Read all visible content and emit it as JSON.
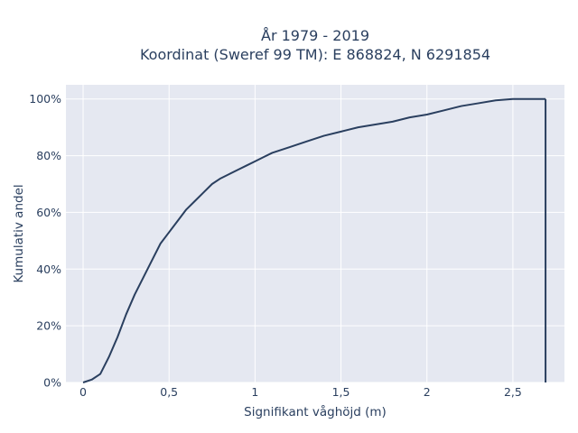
{
  "chart_data": {
    "type": "line",
    "title_line1": "År 1979 - 2019",
    "title_line2": "Koordinat (Sweref 99 TM): E 868824, N 6291854",
    "xlabel": "Signifikant våghöjd (m)",
    "ylabel": "Kumulativ andel",
    "xlim": [
      -0.1,
      2.8
    ],
    "ylim": [
      0,
      1.05
    ],
    "x_ticks": [
      0,
      0.5,
      1,
      1.5,
      2,
      2.5
    ],
    "x_tick_labels": [
      "0",
      "0,5",
      "1",
      "1,5",
      "2",
      "2,5"
    ],
    "y_ticks": [
      0,
      0.2,
      0.4,
      0.6,
      0.8,
      1.0
    ],
    "y_tick_labels": [
      "0%",
      "20%",
      "40%",
      "60%",
      "80%",
      "100%"
    ],
    "grid": true,
    "colors": {
      "line": "#2a3f5f",
      "plot_bg": "#e5e8f1",
      "grid": "#ffffff",
      "text": "#2a3f5f"
    },
    "series": [
      {
        "x": [
          0.0,
          0.05,
          0.1,
          0.15,
          0.2,
          0.25,
          0.3,
          0.35,
          0.4,
          0.45,
          0.5,
          0.55,
          0.6,
          0.65,
          0.7,
          0.75,
          0.8,
          0.85,
          0.9,
          0.95,
          1.0,
          1.05,
          1.1,
          1.15,
          1.2,
          1.3,
          1.4,
          1.5,
          1.6,
          1.7,
          1.8,
          1.9,
          2.0,
          2.1,
          2.2,
          2.3,
          2.4,
          2.5,
          2.6,
          2.69
        ],
        "y": [
          0.0,
          0.01,
          0.03,
          0.09,
          0.16,
          0.24,
          0.31,
          0.37,
          0.43,
          0.49,
          0.53,
          0.57,
          0.61,
          0.64,
          0.67,
          0.7,
          0.72,
          0.735,
          0.75,
          0.765,
          0.78,
          0.795,
          0.81,
          0.82,
          0.83,
          0.85,
          0.87,
          0.885,
          0.9,
          0.91,
          0.92,
          0.935,
          0.945,
          0.96,
          0.975,
          0.985,
          0.995,
          1.0,
          1.0,
          1.0
        ]
      }
    ],
    "drop_line_x": 2.69
  }
}
